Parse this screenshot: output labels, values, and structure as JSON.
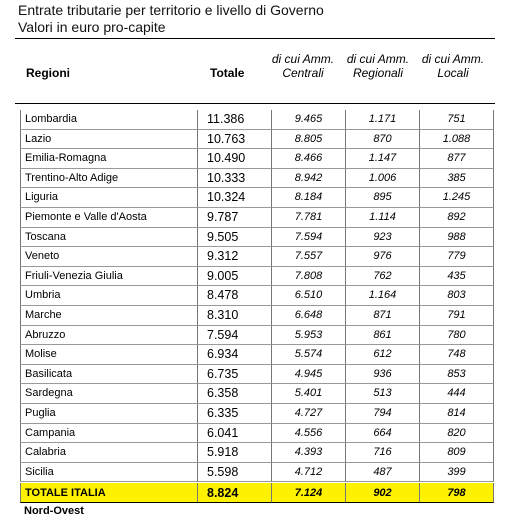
{
  "header": {
    "title": "Entrate tributarie per territorio e livello di Governo",
    "subtitle": "Valori in euro pro-capite"
  },
  "table": {
    "columns": [
      "Regioni",
      "Totale",
      "di cui Amm. Centrali",
      "di cui Amm. Regionali",
      "di cui Amm. Locali"
    ],
    "rows": [
      [
        "Lombardia",
        "11.386",
        "9.465",
        "1.171",
        "751"
      ],
      [
        "Lazio",
        "10.763",
        "8.805",
        "870",
        "1.088"
      ],
      [
        "Emilia-Romagna",
        "10.490",
        "8.466",
        "1.147",
        "877"
      ],
      [
        "Trentino-Alto Adige",
        "10.333",
        "8.942",
        "1.006",
        "385"
      ],
      [
        "Liguria",
        "10.324",
        "8.184",
        "895",
        "1.245"
      ],
      [
        "Piemonte e Valle d'Aosta",
        "9.787",
        "7.781",
        "1.114",
        "892"
      ],
      [
        "Toscana",
        "9.505",
        "7.594",
        "923",
        "988"
      ],
      [
        "Veneto",
        "9.312",
        "7.557",
        "976",
        "779"
      ],
      [
        "Friuli-Venezia Giulia",
        "9.005",
        "7.808",
        "762",
        "435"
      ],
      [
        "Umbria",
        "8.478",
        "6.510",
        "1.164",
        "803"
      ],
      [
        "Marche",
        "8.310",
        "6.648",
        "871",
        "791"
      ],
      [
        "Abruzzo",
        "7.594",
        "5.953",
        "861",
        "780"
      ],
      [
        "Molise",
        "6.934",
        "5.574",
        "612",
        "748"
      ],
      [
        "Basilicata",
        "6.735",
        "4.945",
        "936",
        "853"
      ],
      [
        "Sardegna",
        "6.358",
        "5.401",
        "513",
        "444"
      ],
      [
        "Puglia",
        "6.335",
        "4.727",
        "794",
        "814"
      ],
      [
        "Campania",
        "6.041",
        "4.556",
        "664",
        "820"
      ],
      [
        "Calabria",
        "5.918",
        "4.393",
        "716",
        "809"
      ],
      [
        "Sicilia",
        "5.598",
        "4.712",
        "487",
        "399"
      ]
    ],
    "total": [
      "TOTALE ITALIA",
      "8.824",
      "7.124",
      "902",
      "798"
    ],
    "next_row": "Nord-Ovest"
  }
}
